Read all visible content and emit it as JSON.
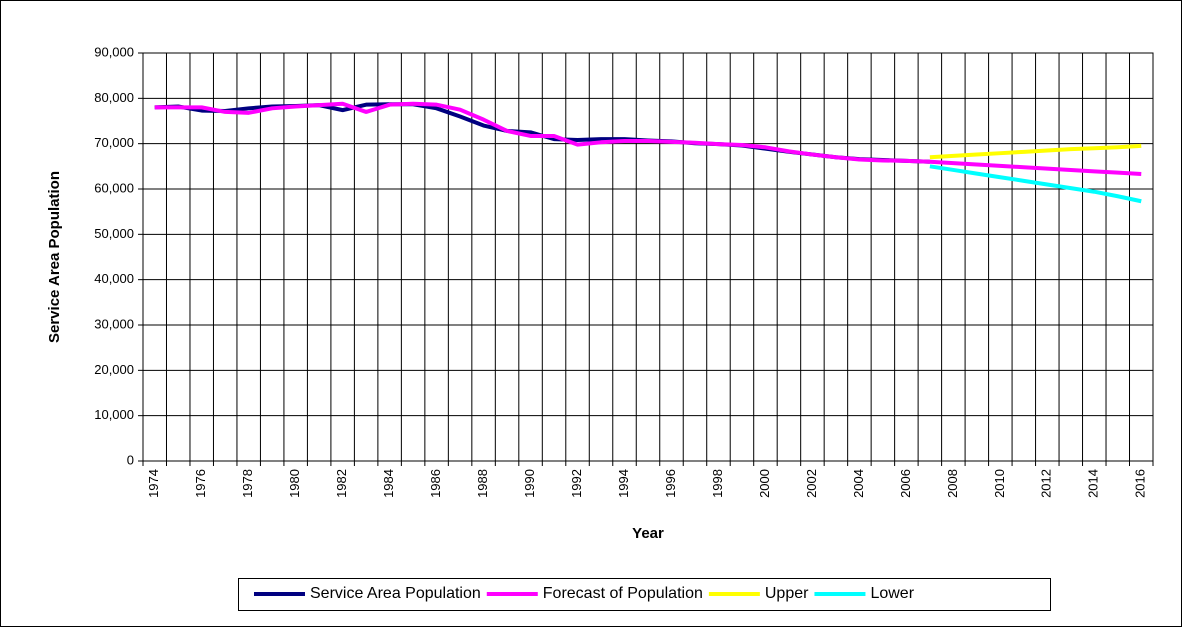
{
  "chart_data": {
    "type": "line",
    "x_label": "Year",
    "y_label": "Service Area Population",
    "categories": [
      "1974",
      null,
      "1976",
      null,
      "1978",
      null,
      "1980",
      null,
      "1982",
      null,
      "1984",
      null,
      "1986",
      null,
      "1988",
      null,
      "1990",
      null,
      "1992",
      null,
      "1994",
      null,
      "1996",
      null,
      "1998",
      null,
      "2000",
      null,
      "2002",
      null,
      "2004",
      null,
      "2006",
      null,
      "2008",
      null,
      "2010",
      null,
      "2012",
      null,
      "2014",
      null,
      "2016"
    ],
    "series": [
      {
        "name": "Service Area Population",
        "color": "#000080",
        "values": [
          78000,
          78200,
          77300,
          77200,
          77800,
          78200,
          78300,
          78500,
          77400,
          78600,
          78700,
          78700,
          77800,
          76000,
          74000,
          72800,
          72500,
          71000,
          70800,
          71000,
          71000,
          70700,
          70500,
          70100,
          69900,
          69600,
          68900,
          68200,
          67600,
          67000,
          66600,
          66400,
          66200,
          66000,
          null,
          null,
          null,
          null,
          null,
          null,
          null,
          null,
          null
        ]
      },
      {
        "name": "Forecast of Population",
        "color": "#ff00ff",
        "values": [
          78000,
          78000,
          78000,
          77000,
          76800,
          77800,
          78200,
          78500,
          78800,
          77000,
          78600,
          78800,
          78600,
          77500,
          75300,
          72800,
          71700,
          71700,
          69800,
          70300,
          70600,
          70600,
          70400,
          70200,
          69900,
          69700,
          69200,
          68300,
          67600,
          67000,
          66500,
          66300,
          66200,
          66000,
          65700,
          65400,
          65100,
          64800,
          64500,
          64200,
          63900,
          63600,
          63300
        ]
      },
      {
        "name": "Upper",
        "color": "#ffff00",
        "values": [
          null,
          null,
          null,
          null,
          null,
          null,
          null,
          null,
          null,
          null,
          null,
          null,
          null,
          null,
          null,
          null,
          null,
          null,
          null,
          null,
          null,
          null,
          null,
          null,
          null,
          null,
          null,
          null,
          null,
          null,
          null,
          null,
          null,
          67000,
          67300,
          67600,
          67900,
          68200,
          68500,
          68800,
          69000,
          69200,
          69500
        ]
      },
      {
        "name": "Lower",
        "color": "#00ffff",
        "values": [
          null,
          null,
          null,
          null,
          null,
          null,
          null,
          null,
          null,
          null,
          null,
          null,
          null,
          null,
          null,
          null,
          null,
          null,
          null,
          null,
          null,
          null,
          null,
          null,
          null,
          null,
          null,
          null,
          null,
          null,
          null,
          null,
          null,
          65000,
          64200,
          63400,
          62600,
          61800,
          61000,
          60200,
          59400,
          58400,
          57300
        ]
      }
    ],
    "ylim": [
      0,
      90000
    ],
    "yticks": [
      0,
      {
        "value": 10000,
        "label": "10,000"
      },
      {
        "value": 20000,
        "label": "20,000"
      },
      {
        "value": 30000,
        "label": "30,000"
      },
      {
        "value": 40000,
        "label": "40,000"
      },
      {
        "value": 50000,
        "label": "50,000"
      },
      {
        "value": 60000,
        "label": "60,000"
      },
      {
        "value": 70000,
        "label": "70,000"
      },
      {
        "value": 80000,
        "label": "80,000"
      },
      {
        "value": 90000,
        "label": "90,000"
      }
    ],
    "grid": true
  }
}
